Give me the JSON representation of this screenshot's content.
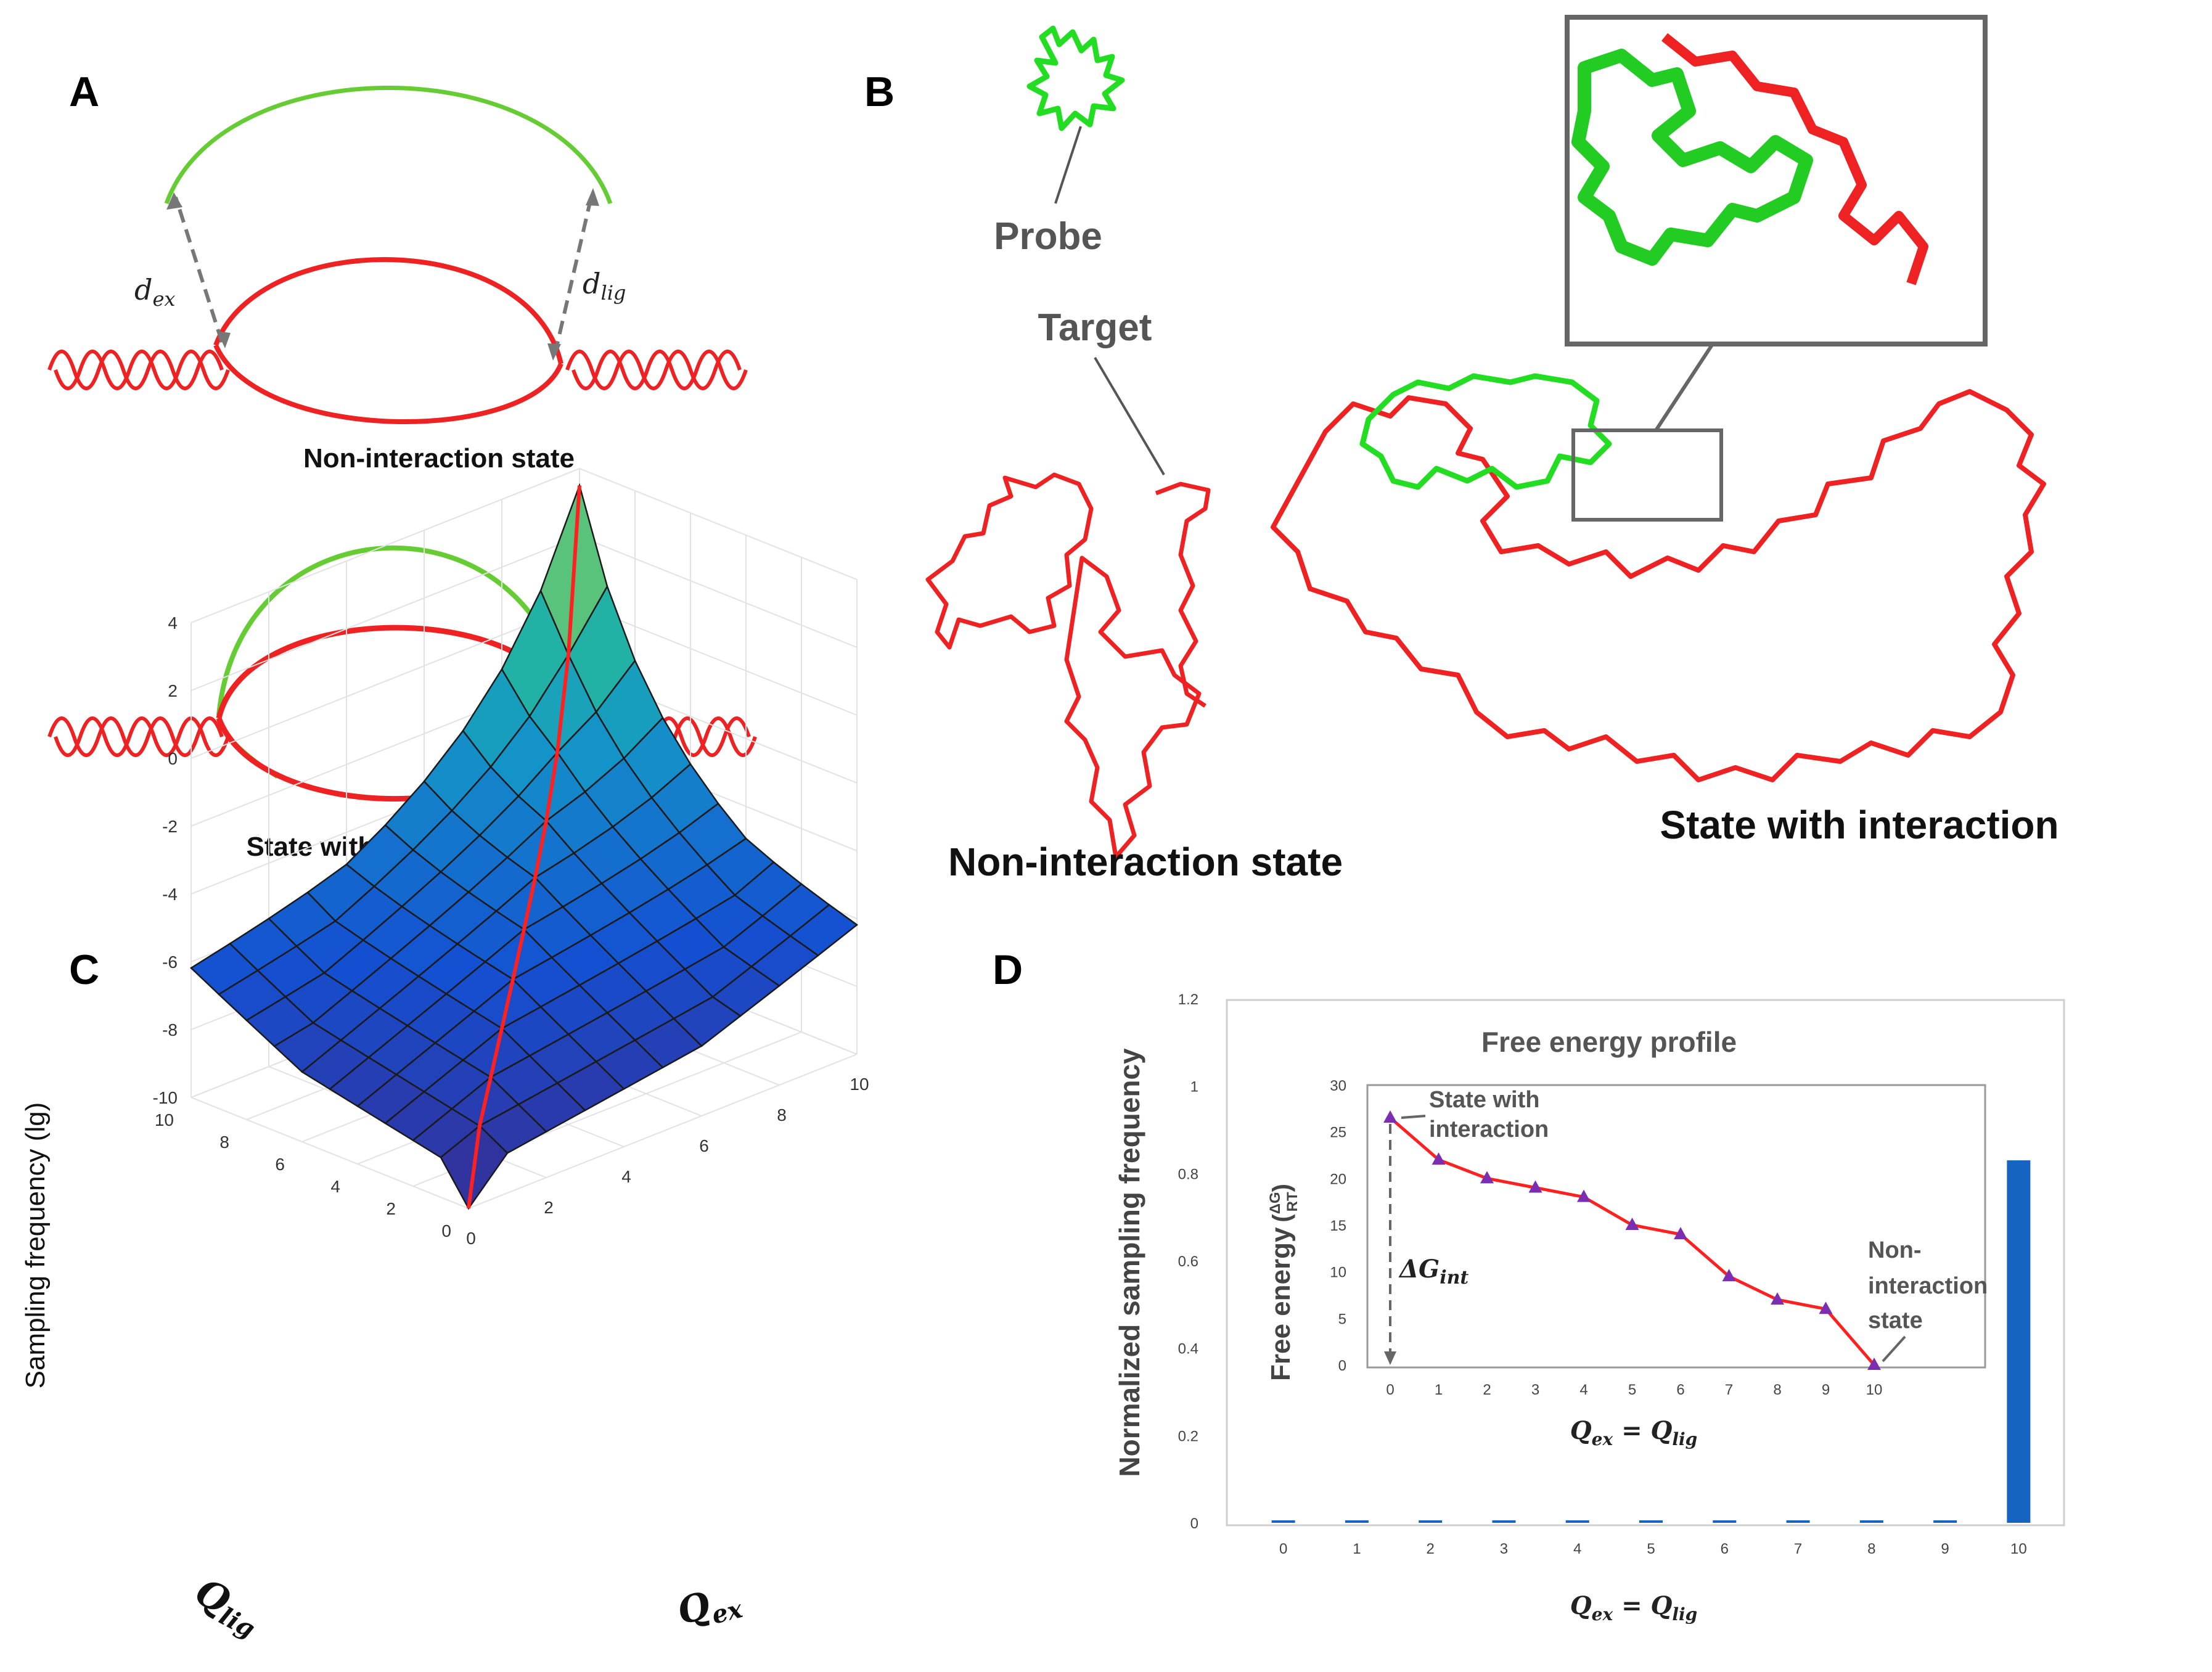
{
  "panels": {
    "a": {
      "letter": "A",
      "d_ex": "d",
      "d_ex_sub": "ex",
      "d_lig": "d",
      "d_lig_sub": "lig",
      "top_caption": "Non-interaction state",
      "bottom_caption": "State with interaction"
    },
    "b": {
      "letter": "B",
      "probe_label": "Probe",
      "target_label": "Target",
      "left_caption": "Non-interaction state",
      "right_caption": "State with interaction"
    },
    "c": {
      "letter": "C",
      "zlabel": "Sampling frequency (lg)",
      "xlabel_main": "Q",
      "xlabel_sub": "ex",
      "ylabel_main": "Q",
      "ylabel_sub": "lig",
      "zticks": [
        "4",
        "2",
        "0",
        "-2",
        "-4",
        "-6",
        "-8",
        "-10"
      ],
      "xticks": [
        "0",
        "2",
        "4",
        "6",
        "8",
        "10"
      ],
      "yticks": [
        "0",
        "2",
        "4",
        "6",
        "8",
        "10"
      ],
      "colors": {
        "low": "#3b2c8a",
        "mid": "#1e9bc0",
        "high": "#f2c94c",
        "diag": "#ff2020"
      }
    },
    "d": {
      "letter": "D",
      "inset_title": "Free energy profile",
      "state_with": "State with",
      "interaction": "interaction",
      "non_top": "Non-",
      "non_mid": "interaction",
      "non_bot": "state",
      "delta_g": "ΔG",
      "delta_g_sub": "int",
      "inset_ylabel": "Free energy",
      "inset_frac_num": "ΔG",
      "inset_frac_den": "RT",
      "xlabel_main": "Q",
      "xlabel_sub_ex": "ex",
      "xlabel_eq": " = Q",
      "xlabel_sub_lig": "lig",
      "ylabel": "Normalized sampling frequency",
      "bar_color": "#1565c0",
      "line_color": "#ff2020",
      "marker_color": "#7b2fb0"
    }
  },
  "chart_data": [
    {
      "type": "bar",
      "title": "",
      "categories": [
        "0",
        "1",
        "2",
        "3",
        "4",
        "5",
        "6",
        "7",
        "8",
        "9",
        "10"
      ],
      "values": [
        0,
        0,
        0,
        0,
        0,
        0.002,
        0.002,
        0.002,
        0.002,
        0.002,
        0.83
      ],
      "xlabel": "Q_ex = Q_lig",
      "ylabel": "Normalized sampling frequency",
      "ylim": [
        0,
        1.2
      ],
      "yticks": [
        "0",
        "0.2",
        "0.4",
        "0.6",
        "0.8",
        "1",
        "1.2"
      ],
      "grid": false
    },
    {
      "type": "line",
      "title": "Free energy profile",
      "x": [
        0,
        1,
        2,
        3,
        4,
        5,
        6,
        7,
        8,
        9,
        10
      ],
      "values": [
        26.5,
        22,
        20,
        19,
        18,
        15,
        14,
        9.5,
        7,
        6,
        0
      ],
      "xlabel": "Q_ex = Q_lig",
      "ylabel": "Free energy (ΔG/RT)",
      "ylim": [
        0,
        30
      ],
      "yticks": [
        "0",
        "5",
        "10",
        "15",
        "20",
        "25",
        "30"
      ],
      "xticks": [
        "0",
        "1",
        "2",
        "3",
        "4",
        "5",
        "6",
        "7",
        "8",
        "9",
        "10"
      ]
    }
  ]
}
